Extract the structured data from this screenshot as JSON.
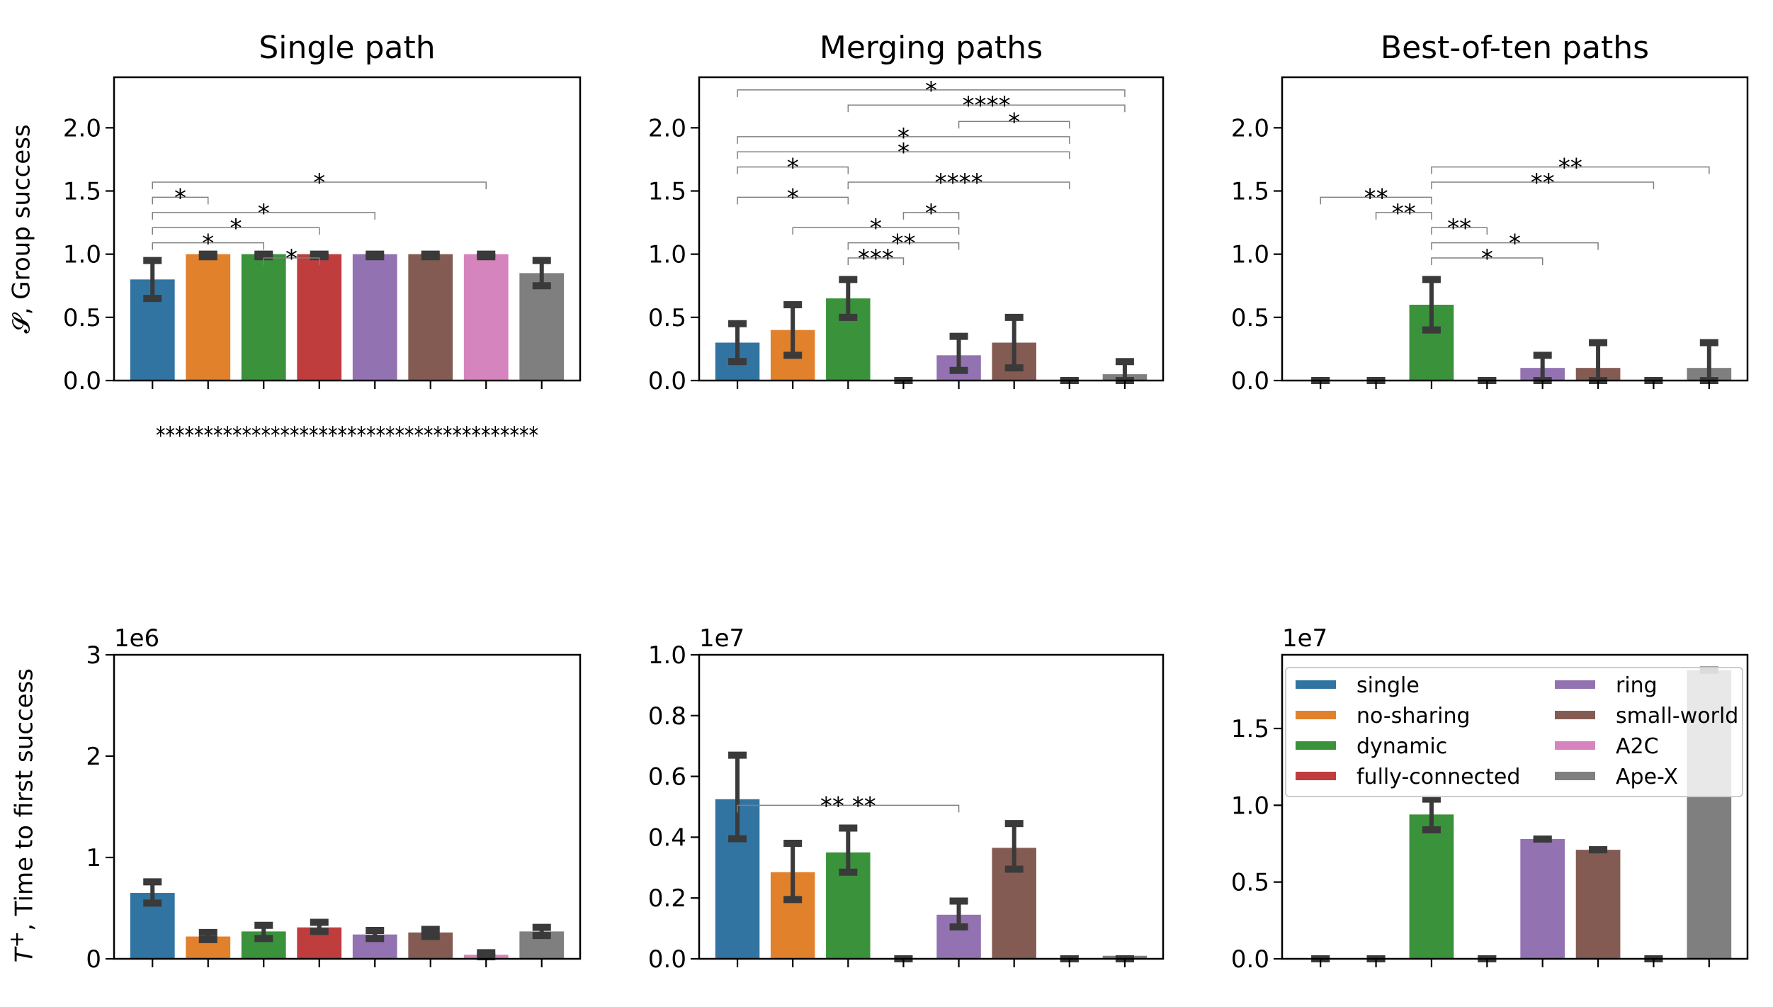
{
  "colors": {
    "single": "#3274a1",
    "no-sharing": "#e1812c",
    "dynamic": "#3a923a",
    "fully-connected": "#c03d3e",
    "ring": "#9372b2",
    "small-world": "#845b53",
    "A2C": "#d684bd",
    "Ape-X": "#7f7f7f",
    "errorbar": "#3a3a3a",
    "sigline": "#808080"
  },
  "row_labels": {
    "top": "𝓢, Group success",
    "bottom_symbol": "T",
    "bottom_sup": "+",
    "bottom_text": ", Time to first success"
  },
  "legend": {
    "entries": [
      {
        "label": "single",
        "key": "single"
      },
      {
        "label": "no-sharing",
        "key": "no-sharing"
      },
      {
        "label": "dynamic",
        "key": "dynamic"
      },
      {
        "label": "fully-connected",
        "key": "fully-connected"
      },
      {
        "label": "ring",
        "key": "ring"
      },
      {
        "label": "small-world",
        "key": "small-world"
      },
      {
        "label": "A2C",
        "key": "A2C"
      },
      {
        "label": "Ape-X",
        "key": "Ape-X"
      }
    ],
    "placement": "top, bottom-right panel"
  },
  "chart_data": [
    {
      "type": "bar",
      "panel": "top-left",
      "title": "Single path",
      "categories": [
        "single",
        "no-sharing",
        "dynamic",
        "fully-connected",
        "ring",
        "small-world",
        "A2C",
        "Ape-X"
      ],
      "values": [
        0.8,
        1.0,
        1.0,
        1.0,
        1.0,
        1.0,
        1.0,
        0.85
      ],
      "error_low": [
        0.65,
        0.98,
        0.98,
        0.98,
        0.98,
        0.98,
        0.98,
        0.75
      ],
      "error_high": [
        0.95,
        1.0,
        1.0,
        1.0,
        1.0,
        1.0,
        1.0,
        0.95
      ],
      "ylim": [
        0,
        2.4
      ],
      "yticks": [
        "0.0",
        "0.5",
        "1.0",
        "1.5",
        "2.0"
      ],
      "ytick_values": [
        0,
        0.5,
        1.0,
        1.5,
        2.0
      ],
      "offset_label": "",
      "significance": [
        {
          "from": 0,
          "to": 6,
          "y": 1.57,
          "label": "*"
        },
        {
          "from": 0,
          "to": 1,
          "y": 1.45,
          "label": "*"
        },
        {
          "from": 0,
          "to": 4,
          "y": 1.33,
          "label": "*"
        },
        {
          "from": 0,
          "to": 3,
          "y": 1.21,
          "label": "*"
        },
        {
          "from": 0,
          "to": 2,
          "y": 1.09,
          "label": "*"
        },
        {
          "from": 2,
          "to": 3,
          "y": 0.97,
          "label": "*"
        }
      ],
      "extra_annotation": "****************************************"
    },
    {
      "type": "bar",
      "panel": "top-middle",
      "title": "Merging paths",
      "categories": [
        "single",
        "no-sharing",
        "dynamic",
        "fully-connected",
        "ring",
        "small-world",
        "A2C",
        "Ape-X"
      ],
      "values": [
        0.3,
        0.4,
        0.65,
        0.0,
        0.2,
        0.3,
        0.0,
        0.05
      ],
      "error_low": [
        0.15,
        0.2,
        0.5,
        0.0,
        0.08,
        0.1,
        0.0,
        0.0
      ],
      "error_high": [
        0.45,
        0.6,
        0.8,
        0.0,
        0.35,
        0.5,
        0.0,
        0.15
      ],
      "ylim": [
        0,
        2.4
      ],
      "yticks": [
        "0.0",
        "0.5",
        "1.0",
        "1.5",
        "2.0"
      ],
      "ytick_values": [
        0,
        0.5,
        1.0,
        1.5,
        2.0
      ],
      "offset_label": "",
      "significance": [
        {
          "from": 0,
          "to": 7,
          "y": 2.3,
          "label": "*"
        },
        {
          "from": 2,
          "to": 7,
          "y": 2.18,
          "label": "****"
        },
        {
          "from": 4,
          "to": 6,
          "y": 2.05,
          "label": "*"
        },
        {
          "from": 0,
          "to": 6,
          "y": 1.93,
          "label": "*"
        },
        {
          "from": 0,
          "to": 6,
          "y": 1.81,
          "label": "*"
        },
        {
          "from": 0,
          "to": 2,
          "y": 1.69,
          "label": "*"
        },
        {
          "from": 2,
          "to": 6,
          "y": 1.57,
          "label": "****"
        },
        {
          "from": 0,
          "to": 2,
          "y": 1.45,
          "label": "*"
        },
        {
          "from": 3,
          "to": 4,
          "y": 1.33,
          "label": "*"
        },
        {
          "from": 1,
          "to": 4,
          "y": 1.21,
          "label": "*"
        },
        {
          "from": 2,
          "to": 4,
          "y": 1.09,
          "label": "**"
        },
        {
          "from": 2,
          "to": 3,
          "y": 0.97,
          "label": "***"
        }
      ],
      "extra_annotation": ""
    },
    {
      "type": "bar",
      "panel": "top-right",
      "title": "Best-of-ten paths",
      "categories": [
        "single",
        "no-sharing",
        "dynamic",
        "fully-connected",
        "ring",
        "small-world",
        "A2C",
        "Ape-X"
      ],
      "values": [
        0.0,
        0.0,
        0.6,
        0.0,
        0.1,
        0.1,
        0.0,
        0.1
      ],
      "error_low": [
        0.0,
        0.0,
        0.4,
        0.0,
        0.0,
        0.0,
        0.0,
        0.0
      ],
      "error_high": [
        0.0,
        0.0,
        0.8,
        0.0,
        0.2,
        0.3,
        0.0,
        0.3
      ],
      "ylim": [
        0,
        2.4
      ],
      "yticks": [
        "0.0",
        "0.5",
        "1.0",
        "1.5",
        "2.0"
      ],
      "ytick_values": [
        0,
        0.5,
        1.0,
        1.5,
        2.0
      ],
      "offset_label": "",
      "significance": [
        {
          "from": 2,
          "to": 7,
          "y": 1.69,
          "label": "**"
        },
        {
          "from": 2,
          "to": 6,
          "y": 1.57,
          "label": "**"
        },
        {
          "from": 0,
          "to": 2,
          "y": 1.45,
          "label": "**"
        },
        {
          "from": 1,
          "to": 2,
          "y": 1.33,
          "label": "**"
        },
        {
          "from": 2,
          "to": 3,
          "y": 1.21,
          "label": "**"
        },
        {
          "from": 2,
          "to": 5,
          "y": 1.09,
          "label": "*"
        },
        {
          "from": 2,
          "to": 4,
          "y": 0.97,
          "label": "*"
        }
      ],
      "extra_annotation": ""
    },
    {
      "type": "bar",
      "panel": "bottom-left",
      "title": "",
      "categories": [
        "single",
        "no-sharing",
        "dynamic",
        "fully-connected",
        "ring",
        "small-world",
        "A2C",
        "Ape-X"
      ],
      "values": [
        0.65,
        0.22,
        0.27,
        0.31,
        0.24,
        0.26,
        0.04,
        0.27
      ],
      "error_low": [
        0.55,
        0.19,
        0.2,
        0.27,
        0.2,
        0.22,
        0.02,
        0.23
      ],
      "error_high": [
        0.76,
        0.26,
        0.33,
        0.36,
        0.28,
        0.29,
        0.06,
        0.31
      ],
      "ylim": [
        0,
        3
      ],
      "yticks": [
        "0",
        "1",
        "2",
        "3"
      ],
      "ytick_values": [
        0,
        1,
        2,
        3
      ],
      "offset_label": "1e6",
      "significance": [],
      "extra_annotation": ""
    },
    {
      "type": "bar",
      "panel": "bottom-middle",
      "title": "",
      "categories": [
        "single",
        "no-sharing",
        "dynamic",
        "fully-connected",
        "ring",
        "small-world",
        "A2C",
        "Ape-X"
      ],
      "values": [
        0.525,
        0.285,
        0.35,
        0.0,
        0.145,
        0.365,
        0.0,
        0.01
      ],
      "error_low": [
        0.395,
        0.195,
        0.285,
        0.0,
        0.105,
        0.295,
        0.0,
        0.0
      ],
      "error_high": [
        0.67,
        0.38,
        0.43,
        0.0,
        0.19,
        0.445,
        0.0,
        0.0
      ],
      "ylim": [
        0,
        1.0
      ],
      "yticks": [
        "0.0",
        "0.2",
        "0.4",
        "0.6",
        "0.8",
        "1.0"
      ],
      "ytick_values": [
        0,
        0.2,
        0.4,
        0.6,
        0.8,
        1.0
      ],
      "offset_label": "1e7",
      "significance": [
        {
          "from": 0,
          "to": 4,
          "y": 0.505,
          "label": "**   **"
        }
      ],
      "extra_annotation": ""
    },
    {
      "type": "bar",
      "panel": "bottom-right",
      "title": "",
      "categories": [
        "single",
        "no-sharing",
        "dynamic",
        "fully-connected",
        "ring",
        "small-world",
        "A2C",
        "Ape-X"
      ],
      "values": [
        0.0,
        0.0,
        0.94,
        0.0,
        0.78,
        0.71,
        0.0,
        1.88
      ],
      "error_low": [
        0.0,
        0.0,
        0.84,
        0.0,
        0.78,
        0.71,
        0.0,
        1.88
      ],
      "error_high": [
        0.0,
        0.0,
        1.04,
        0.0,
        0.78,
        0.71,
        0.0,
        1.88
      ],
      "ylim": [
        0,
        1.98
      ],
      "yticks": [
        "0.0",
        "0.5",
        "1.0",
        "1.5"
      ],
      "ytick_values": [
        0,
        0.5,
        1.0,
        1.5
      ],
      "offset_label": "1e7",
      "significance": [],
      "extra_annotation": ""
    }
  ]
}
